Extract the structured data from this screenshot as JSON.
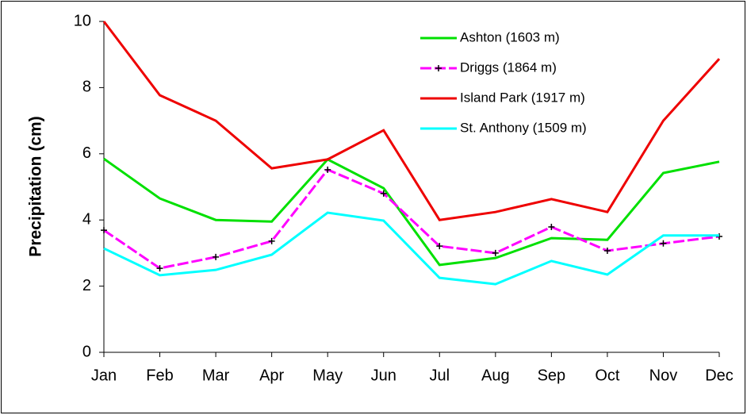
{
  "chart_data": {
    "type": "line",
    "y_label": "Precipitation (cm)",
    "categories": [
      "Jan",
      "Feb",
      "Mar",
      "Apr",
      "May",
      "Jun",
      "Jul",
      "Aug",
      "Sep",
      "Oct",
      "Nov",
      "Dec"
    ],
    "series": [
      {
        "name": "Ashton (1603 m)",
        "color": "#00e000",
        "values": [
          5.85,
          4.65,
          4.0,
          3.95,
          5.83,
          4.96,
          2.64,
          2.85,
          3.45,
          3.4,
          5.42,
          5.76
        ]
      },
      {
        "name": "Driggs (1864 m)",
        "color": "#ff00ff",
        "dash": true,
        "marker": "+",
        "values": [
          3.69,
          2.54,
          2.88,
          3.36,
          5.52,
          4.8,
          3.21,
          3.0,
          3.79,
          3.07,
          3.29,
          3.5
        ]
      },
      {
        "name": "Island Park (1917 m)",
        "color": "#ee0000",
        "values": [
          10.0,
          7.77,
          7.0,
          5.56,
          5.83,
          6.71,
          4.0,
          4.24,
          4.63,
          4.24,
          7.0,
          8.87
        ]
      },
      {
        "name": "St. Anthony (1509 m)",
        "color": "#00ffff",
        "values": [
          3.14,
          2.33,
          2.49,
          2.95,
          4.22,
          3.98,
          2.25,
          2.06,
          2.76,
          2.35,
          3.53,
          3.53
        ]
      }
    ],
    "ylim": [
      0,
      10
    ],
    "yticks": [
      0,
      2,
      4,
      6,
      8,
      10
    ],
    "legend": "upper right"
  }
}
